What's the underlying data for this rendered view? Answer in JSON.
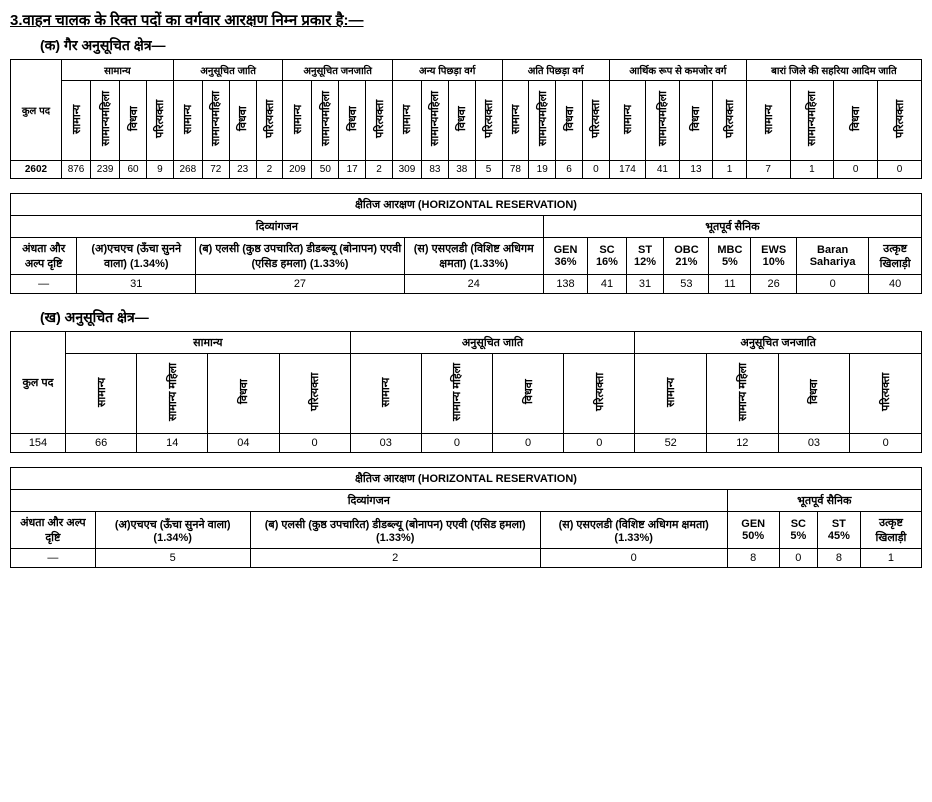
{
  "heading": "3.वाहन चालक के रिक्त पदों का वर्गवार आरक्षण निम्न प्रकार है:—",
  "sub_a": "(क) गैर अनुसूचित क्षेत्र—",
  "sub_b": "(ख) अनुसूचित क्षेत्र—",
  "groups": {
    "kp": "कुल पद",
    "g1": "सामान्य",
    "g2": "अनुसूचित जाति",
    "g3": "अनुसूचित जनजाति",
    "g4": "अन्य पिछड़ा वर्ग",
    "g5": "अति पिछड़ा वर्ग",
    "g6": "आर्थिक रूप से कमजोर वर्ग",
    "g7": "बारां जिले की सहरिया आदिम जाति"
  },
  "subcols": {
    "c1": "सामान्य",
    "c2": "सामान्यमहिला",
    "c2b": "सामान्य महिला",
    "c3": "विधवा",
    "c4": "परित्यक्ता"
  },
  "tbl1": {
    "total": "2602",
    "vals": [
      "876",
      "239",
      "60",
      "9",
      "268",
      "72",
      "23",
      "2",
      "209",
      "50",
      "17",
      "2",
      "309",
      "83",
      "38",
      "5",
      "78",
      "19",
      "6",
      "0",
      "174",
      "41",
      "13",
      "1",
      "7",
      "1",
      "0",
      "0"
    ]
  },
  "hr_title": "क्षैतिज आरक्षण (HORIZONTAL RESERVATION)",
  "hr_groups": {
    "div": "दिव्यांगजन",
    "ex": "भूतपूर्व सैनिक"
  },
  "tbl2": {
    "h1": "अंधता और अल्प दृष्टि",
    "h2": "(अ)एचएच (ऊँचा सुनने वाला) (1.34%)",
    "h3": "(ब) एलसी (कुष्ठ उपचारित) डीडब्ल्यू (बोनापन) एएवी (एसिड हमला) (1.33%)",
    "h4": "(स) एसएलडी (विशिष्ट अधिगम क्षमता) (1.33%)",
    "h5": "GEN 36%",
    "h6": "SC 16%",
    "h7": "ST 12%",
    "h8": "OBC 21%",
    "h9": "MBC 5%",
    "h10": "EWS 10%",
    "h11": "Baran Sahariya",
    "h12": "उत्कृष्ट खिलाड़ी",
    "r": [
      "—",
      "31",
      "27",
      "24",
      "138",
      "41",
      "31",
      "53",
      "11",
      "26",
      "0",
      "40"
    ]
  },
  "tbl3": {
    "total": "154",
    "vals": [
      "66",
      "14",
      "04",
      "0",
      "03",
      "0",
      "0",
      "0",
      "52",
      "12",
      "03",
      "0"
    ]
  },
  "tbl4": {
    "h1": "अंधता और अल्प दृष्टि",
    "h2": "(अ)एचएच (ऊँचा सुनने वाला) (1.34%)",
    "h3": "(ब) एलसी (कुष्ठ उपचारित) डीडब्ल्यू (बोनापन) एएवी (एसिड हमला) (1.33%)",
    "h4": "(स) एसएलडी (विशिष्ट अधिगम क्षमता)    (1.33%)",
    "h5": "GEN 50%",
    "h6": "SC 5%",
    "h7": "ST 45%",
    "h8": "उत्कृष्ट खिलाड़ी",
    "r": [
      "—",
      "5",
      "2",
      "0",
      "8",
      "0",
      "8",
      "1"
    ]
  }
}
